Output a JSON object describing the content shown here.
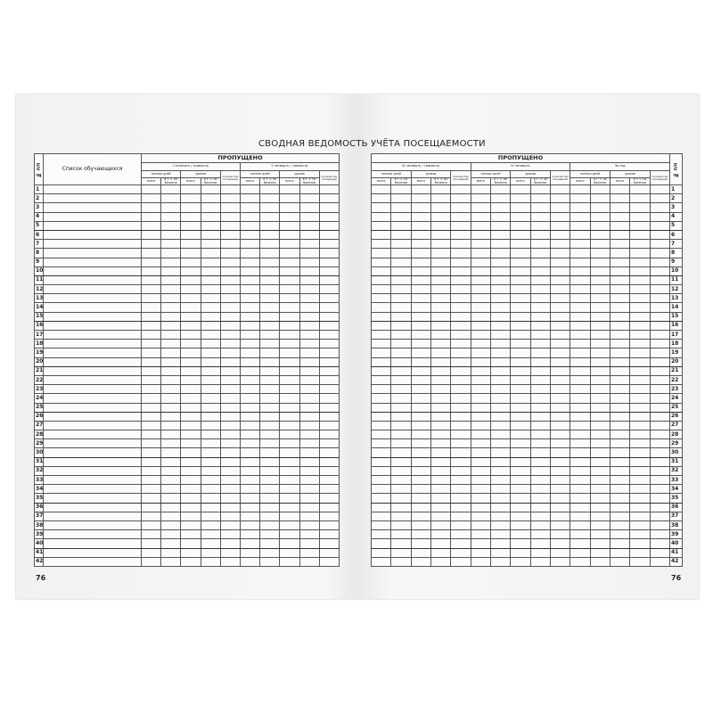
{
  "left_page": {
    "title": "СВОДНАЯ ВЕДОМОСТЬ",
    "number_header": "№ п/п",
    "name_header": "Список обучающихся",
    "missed_header": "ПРОПУЩЕНО",
    "periods": [
      "I четверть / триместр",
      "II четверть / триместр"
    ],
    "page_number": "76"
  },
  "right_page": {
    "title": "УЧЁТА ПОСЕЩАЕМОСТИ",
    "number_header": "№ п/п",
    "missed_header": "ПРОПУЩЕНО",
    "periods": [
      "III четверть / триместр",
      "IV четверть",
      "За год"
    ],
    "page_number": "76"
  },
  "subheaders": {
    "full_days": "полных дней",
    "lessons": "уроков",
    "late": "количество опозданий",
    "total": "всего",
    "sick": "в т. ч. по болезни"
  },
  "row_numbers": [
    1,
    2,
    3,
    4,
    5,
    6,
    7,
    8,
    9,
    10,
    11,
    12,
    13,
    14,
    15,
    16,
    17,
    18,
    19,
    20,
    21,
    22,
    23,
    24,
    25,
    26,
    27,
    28,
    29,
    30,
    31,
    32,
    33,
    34,
    35,
    36,
    37,
    38,
    39,
    40,
    41,
    42
  ]
}
